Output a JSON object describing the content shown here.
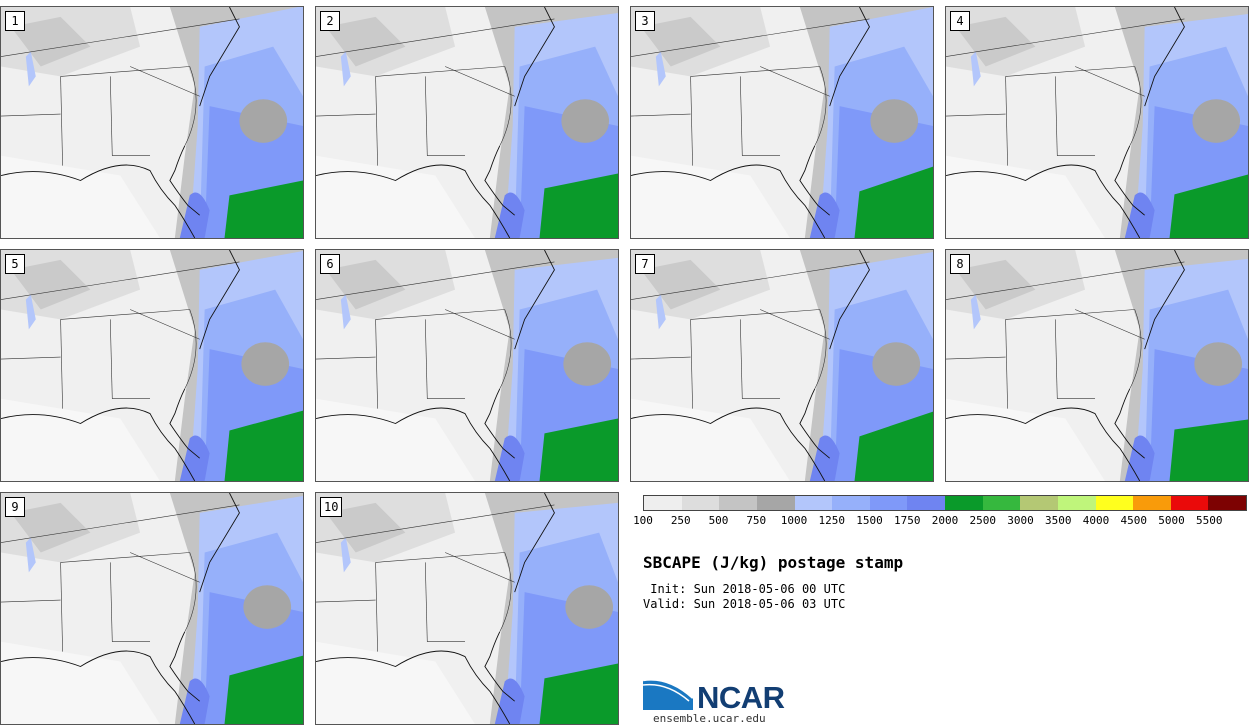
{
  "panels": [
    {
      "label": "1"
    },
    {
      "label": "2"
    },
    {
      "label": "3"
    },
    {
      "label": "4"
    },
    {
      "label": "5"
    },
    {
      "label": "6"
    },
    {
      "label": "7"
    },
    {
      "label": "8"
    },
    {
      "label": "9"
    },
    {
      "label": "10"
    }
  ],
  "colorbar": {
    "colors": [
      "#eeeeee",
      "#dddddd",
      "#c4c4c4",
      "#a6a6a6",
      "#b3c6fb",
      "#96b0fa",
      "#7f99f9",
      "#6f84f1",
      "#0a9a2a",
      "#36b83e",
      "#b4c874",
      "#bff57b",
      "#ffff1e",
      "#f99b0a",
      "#ea0a0a",
      "#7d0202"
    ],
    "labels": [
      "100",
      "250",
      "500",
      "750",
      "1000",
      "1250",
      "1500",
      "1750",
      "2000",
      "2500",
      "3000",
      "3500",
      "4000",
      "4500",
      "5000",
      "5500"
    ]
  },
  "title": "SBCAPE (J/kg) postage stamp",
  "init": " Init: Sun 2018-05-06 00 UTC",
  "valid": "Valid: Sun 2018-05-06 03 UTC",
  "logo_text": "NCAR",
  "website": "ensemble.ucar.edu"
}
